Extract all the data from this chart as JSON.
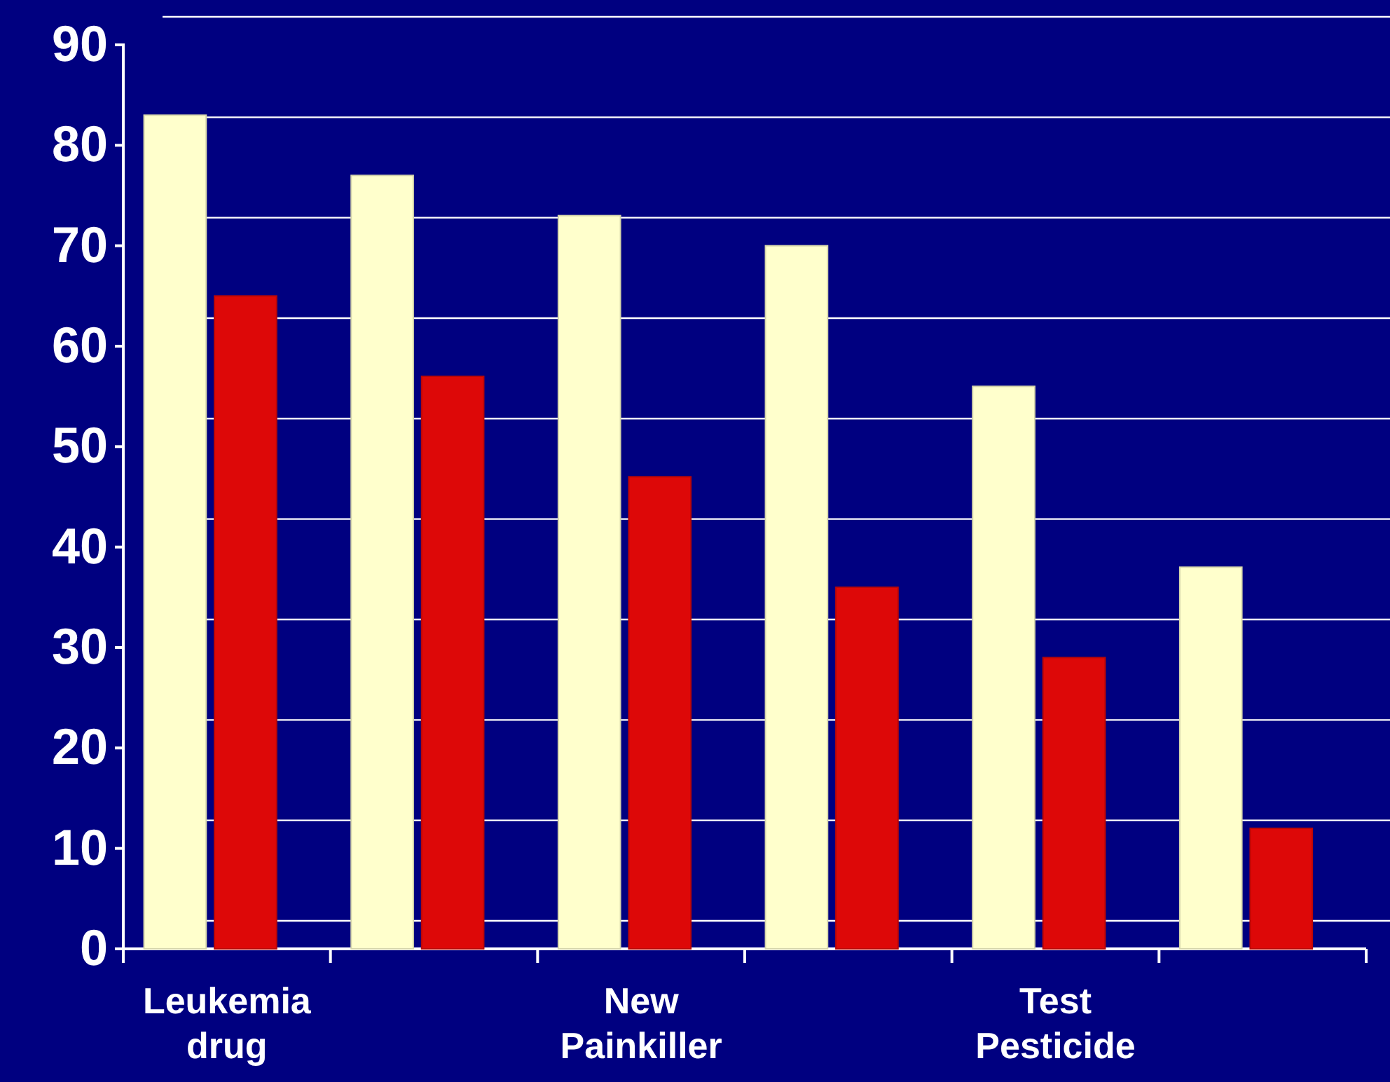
{
  "chart_data": {
    "type": "bar",
    "categories": [
      "Leukemia drug",
      null,
      "New Painkiller",
      null,
      "Test Pesticide",
      null
    ],
    "series": [
      {
        "color": "#ffffcc",
        "values": [
          83,
          77,
          73,
          70,
          56,
          38
        ]
      },
      {
        "color": "#dd0808",
        "values": [
          65,
          57,
          47,
          36,
          29,
          12
        ]
      }
    ],
    "ylim": [
      0,
      90
    ],
    "yticks": [
      0,
      10,
      20,
      30,
      40,
      50,
      60,
      70,
      80,
      90
    ],
    "grid": "y"
  }
}
